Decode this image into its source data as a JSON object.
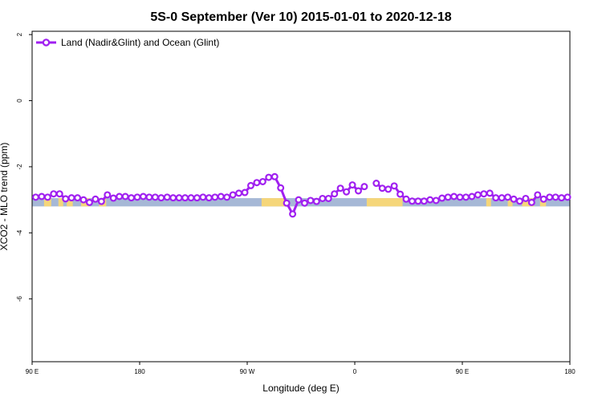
{
  "chart_data": {
    "type": "line",
    "title": "5S-0 September (Ver 10)   2015-01-01 to 2020-12-18",
    "xlabel": "Longitude (deg E)",
    "ylabel": "XCO2 - MLO trend (ppm)",
    "xlim": [
      90,
      540
    ],
    "ylim": [
      -7.9,
      2.1
    ],
    "x_ticks": [
      {
        "value": 90,
        "label": "90 E"
      },
      {
        "value": 180,
        "label": "180"
      },
      {
        "value": 270,
        "label": "90 W"
      },
      {
        "value": 360,
        "label": "0"
      },
      {
        "value": 450,
        "label": "90 E"
      },
      {
        "value": 540,
        "label": "180"
      }
    ],
    "y_ticks": [
      {
        "value": 2,
        "label": "2"
      },
      {
        "value": 0,
        "label": "0"
      },
      {
        "value": -2,
        "label": "-2"
      },
      {
        "value": -4,
        "label": "-4"
      },
      {
        "value": -6,
        "label": "-6"
      }
    ],
    "legend": {
      "position": "top-left",
      "label": "Land (Nadir&Glint) and Ocean (Glint)"
    },
    "series": [
      {
        "name": "Land (Nadir&Glint) and Ocean (Glint)",
        "color": "#a020f0",
        "segments": [
          [
            [
              93,
              -2.92
            ],
            [
              98,
              -2.9
            ],
            [
              103,
              -2.92
            ],
            [
              108,
              -2.82
            ],
            [
              113,
              -2.82
            ],
            [
              118,
              -2.97
            ],
            [
              123,
              -2.94
            ],
            [
              128,
              -2.94
            ],
            [
              133,
              -3.0
            ],
            [
              138,
              -3.08
            ],
            [
              143,
              -2.98
            ],
            [
              148,
              -3.05
            ],
            [
              153,
              -2.85
            ],
            [
              158,
              -2.95
            ],
            [
              163,
              -2.9
            ],
            [
              168,
              -2.9
            ],
            [
              173,
              -2.94
            ],
            [
              178,
              -2.92
            ],
            [
              183,
              -2.9
            ],
            [
              188,
              -2.92
            ],
            [
              193,
              -2.92
            ],
            [
              198,
              -2.94
            ],
            [
              203,
              -2.92
            ],
            [
              208,
              -2.94
            ],
            [
              213,
              -2.94
            ],
            [
              218,
              -2.94
            ],
            [
              223,
              -2.94
            ],
            [
              228,
              -2.94
            ],
            [
              233,
              -2.92
            ],
            [
              238,
              -2.94
            ],
            [
              243,
              -2.92
            ],
            [
              248,
              -2.9
            ],
            [
              253,
              -2.92
            ],
            [
              258,
              -2.85
            ],
            [
              263,
              -2.8
            ],
            [
              268,
              -2.78
            ],
            [
              273,
              -2.57
            ],
            [
              278,
              -2.48
            ],
            [
              283,
              -2.45
            ],
            [
              288,
              -2.32
            ],
            [
              293,
              -2.3
            ],
            [
              298,
              -2.64
            ],
            [
              303,
              -3.1
            ],
            [
              308,
              -3.43
            ],
            [
              313,
              -3.0
            ],
            [
              318,
              -3.1
            ],
            [
              323,
              -3.02
            ],
            [
              328,
              -3.05
            ],
            [
              333,
              -2.96
            ],
            [
              338,
              -2.96
            ],
            [
              343,
              -2.82
            ],
            [
              348,
              -2.65
            ],
            [
              353,
              -2.76
            ],
            [
              358,
              -2.55
            ],
            [
              363,
              -2.73
            ],
            [
              368,
              -2.6
            ]
          ],
          [
            [
              378,
              -2.5
            ],
            [
              383,
              -2.65
            ],
            [
              388,
              -2.68
            ],
            [
              393,
              -2.58
            ],
            [
              398,
              -2.83
            ],
            [
              403,
              -2.98
            ],
            [
              408,
              -3.04
            ],
            [
              413,
              -3.04
            ],
            [
              418,
              -3.04
            ],
            [
              423,
              -3.0
            ],
            [
              428,
              -3.02
            ],
            [
              433,
              -2.95
            ],
            [
              438,
              -2.92
            ],
            [
              443,
              -2.9
            ],
            [
              448,
              -2.92
            ],
            [
              453,
              -2.92
            ],
            [
              458,
              -2.9
            ],
            [
              463,
              -2.85
            ],
            [
              468,
              -2.82
            ],
            [
              473,
              -2.8
            ],
            [
              478,
              -2.94
            ],
            [
              483,
              -2.94
            ],
            [
              488,
              -2.92
            ],
            [
              493,
              -2.98
            ],
            [
              498,
              -3.04
            ],
            [
              503,
              -2.96
            ],
            [
              508,
              -3.08
            ],
            [
              513,
              -2.85
            ],
            [
              518,
              -2.98
            ],
            [
              523,
              -2.92
            ],
            [
              528,
              -2.92
            ],
            [
              533,
              -2.94
            ],
            [
              538,
              -2.92
            ]
          ]
        ]
      }
    ],
    "map_strip": {
      "y_range": [
        -3.2,
        -2.95
      ],
      "ocean_color": "#a6b8d6",
      "land_color": "#f5d67a",
      "land_spans": [
        [
          100,
          106
        ],
        [
          112,
          116
        ],
        [
          119,
          124
        ],
        [
          131,
          138
        ],
        [
          146,
          152
        ],
        [
          282,
          302
        ],
        [
          370,
          400
        ],
        [
          470,
          474
        ],
        [
          488,
          492
        ],
        [
          500,
          510
        ],
        [
          515,
          520
        ]
      ]
    }
  }
}
